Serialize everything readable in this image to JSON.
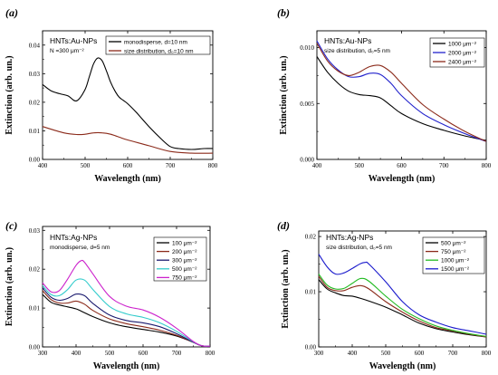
{
  "chart_data": [
    {
      "panel_label": "(a)",
      "type": "line",
      "annotation": [
        "HNTs:Au-NPs",
        "N =300 μm⁻²"
      ],
      "xlabel": "Wavelength (nm)",
      "ylabel": "Extinction (arb. un.)",
      "xlim": [
        400,
        800
      ],
      "ylim": [
        0,
        0.045
      ],
      "xticks": [
        400,
        500,
        600,
        700,
        800
      ],
      "xtick_labels": [
        "400",
        "500",
        "600",
        "700",
        "800"
      ],
      "yticks": [
        0,
        0.01,
        0.02,
        0.03,
        0.04
      ],
      "ytick_labels": [
        "0.00",
        "0.01",
        "0.02",
        "0.03",
        "0.04"
      ],
      "legend_position": "top-right",
      "series": [
        {
          "name": "monodisperse, d=10 nm",
          "color": "#000000",
          "x": [
            400,
            420,
            440,
            460,
            480,
            500,
            510,
            520,
            530,
            540,
            550,
            560,
            570,
            580,
            600,
            620,
            650,
            680,
            700,
            720,
            750,
            780,
            800
          ],
          "y": [
            0.0262,
            0.024,
            0.023,
            0.0222,
            0.0205,
            0.0245,
            0.029,
            0.0335,
            0.0355,
            0.0345,
            0.031,
            0.027,
            0.024,
            0.0218,
            0.0195,
            0.0165,
            0.0115,
            0.007,
            0.0045,
            0.0038,
            0.0035,
            0.0038,
            0.0038
          ]
        },
        {
          "name": "size distribution, d₀=10 nm",
          "color": "#8b2a1a",
          "x": [
            400,
            450,
            480,
            500,
            520,
            540,
            560,
            580,
            600,
            650,
            700,
            750,
            800
          ],
          "y": [
            0.0115,
            0.0093,
            0.0087,
            0.0088,
            0.0093,
            0.0093,
            0.0088,
            0.0078,
            0.0068,
            0.0048,
            0.0028,
            0.0022,
            0.0022
          ]
        }
      ]
    },
    {
      "panel_label": "(b)",
      "type": "line",
      "annotation": [
        "HNTs:Au-NPs",
        "size distribution, d₀=5 nm"
      ],
      "xlabel": "Wavelength (nm)",
      "ylabel": "Extinction (arb. un.)",
      "xlim": [
        400,
        800
      ],
      "ylim": [
        0,
        0.0115
      ],
      "xticks": [
        400,
        500,
        600,
        700,
        800
      ],
      "xtick_labels": [
        "400",
        "500",
        "600",
        "700",
        "800"
      ],
      "yticks": [
        0,
        0.005,
        0.01
      ],
      "ytick_labels": [
        "0.000",
        "0.005",
        "0.010"
      ],
      "legend_position": "top-right",
      "series": [
        {
          "name": "1000 μm⁻²",
          "color": "#000000",
          "x": [
            400,
            425,
            450,
            475,
            500,
            525,
            550,
            575,
            600,
            650,
            700,
            750,
            800
          ],
          "y": [
            0.0092,
            0.0078,
            0.0068,
            0.0061,
            0.0058,
            0.0057,
            0.0055,
            0.0048,
            0.0041,
            0.0032,
            0.0026,
            0.0021,
            0.0017
          ]
        },
        {
          "name": "2000 μm⁻²",
          "color": "#2222cc",
          "x": [
            400,
            425,
            450,
            475,
            500,
            525,
            550,
            575,
            600,
            650,
            700,
            750,
            800
          ],
          "y": [
            0.0106,
            0.009,
            0.008,
            0.0074,
            0.0074,
            0.0077,
            0.0076,
            0.0068,
            0.0057,
            0.0041,
            0.0031,
            0.0023,
            0.0016
          ]
        },
        {
          "name": "2400 μm⁻²",
          "color": "#8b2a1a",
          "x": [
            400,
            425,
            450,
            475,
            500,
            525,
            550,
            575,
            600,
            650,
            700,
            750,
            800
          ],
          "y": [
            0.0104,
            0.0088,
            0.0079,
            0.0075,
            0.0078,
            0.0083,
            0.0084,
            0.0078,
            0.0068,
            0.0049,
            0.0036,
            0.0025,
            0.0016
          ]
        }
      ]
    },
    {
      "panel_label": "(c)",
      "type": "line",
      "annotation": [
        "HNTs:Ag-NPs",
        "monodisperse, d=5 nm"
      ],
      "xlabel": "Wavelength (nm)",
      "ylabel": "Extinction (arb. un.)",
      "xlim": [
        300,
        800
      ],
      "ylim": [
        0,
        0.031
      ],
      "xticks": [
        300,
        400,
        500,
        600,
        700,
        800
      ],
      "xtick_labels": [
        "300",
        "400",
        "500",
        "600",
        "700",
        "800"
      ],
      "yticks": [
        0,
        0.01,
        0.02,
        0.03
      ],
      "ytick_labels": [
        "0.00",
        "0.01",
        "0.02",
        "0.03"
      ],
      "legend_position": "top-right",
      "series": [
        {
          "name": "100 μm⁻²",
          "color": "#000000",
          "x": [
            300,
            325,
            350,
            375,
            400,
            425,
            450,
            500,
            550,
            600,
            650,
            700,
            750,
            775,
            800
          ],
          "y": [
            0.0135,
            0.0115,
            0.0108,
            0.0103,
            0.0098,
            0.0088,
            0.0078,
            0.0062,
            0.0052,
            0.0045,
            0.0038,
            0.0028,
            0.0012,
            0.0003,
            0.0002
          ]
        },
        {
          "name": "200 μm⁻²",
          "color": "#8b2a1a",
          "x": [
            300,
            325,
            350,
            375,
            400,
            425,
            450,
            500,
            550,
            600,
            650,
            700,
            750,
            775,
            800
          ],
          "y": [
            0.0145,
            0.0122,
            0.0113,
            0.0113,
            0.0118,
            0.011,
            0.0094,
            0.0072,
            0.006,
            0.0052,
            0.0043,
            0.003,
            0.0012,
            0.0003,
            0.0002
          ]
        },
        {
          "name": "300 μm⁻²",
          "color": "#1a1a6e",
          "x": [
            300,
            325,
            350,
            375,
            400,
            425,
            450,
            500,
            550,
            600,
            650,
            700,
            750,
            775,
            800
          ],
          "y": [
            0.0152,
            0.0128,
            0.012,
            0.0125,
            0.0136,
            0.0132,
            0.0112,
            0.0082,
            0.0068,
            0.0062,
            0.0052,
            0.0034,
            0.0012,
            0.0003,
            0.0002
          ]
        },
        {
          "name": "500 μm⁻²",
          "color": "#33cccc",
          "x": [
            300,
            325,
            350,
            375,
            400,
            425,
            450,
            500,
            550,
            600,
            650,
            700,
            750,
            775,
            800
          ],
          "y": [
            0.0158,
            0.0135,
            0.0132,
            0.0148,
            0.0172,
            0.0172,
            0.0148,
            0.0104,
            0.0085,
            0.0076,
            0.0062,
            0.004,
            0.0013,
            0.0003,
            0.0002
          ]
        },
        {
          "name": "750 μm⁻²",
          "color": "#cc22cc",
          "x": [
            300,
            325,
            350,
            375,
            400,
            415,
            425,
            450,
            500,
            550,
            600,
            650,
            700,
            750,
            775,
            800
          ],
          "y": [
            0.0165,
            0.0142,
            0.0145,
            0.0175,
            0.021,
            0.0222,
            0.0218,
            0.0188,
            0.013,
            0.0105,
            0.0095,
            0.0076,
            0.0048,
            0.0014,
            0.0003,
            0.0002
          ]
        }
      ]
    },
    {
      "panel_label": "(d)",
      "type": "line",
      "annotation": [
        "HNTs:Ag-NPs",
        "size distribution, d₀=5 nm"
      ],
      "xlabel": "Wavelength (nm)",
      "ylabel": "Extinction (arb. un.)",
      "xlim": [
        300,
        800
      ],
      "ylim": [
        0,
        0.021
      ],
      "xticks": [
        300,
        400,
        500,
        600,
        700,
        800
      ],
      "xtick_labels": [
        "300",
        "400",
        "500",
        "600",
        "700",
        "800"
      ],
      "yticks": [
        0,
        0.01,
        0.02
      ],
      "ytick_labels": [
        "0.00",
        "0.01",
        "0.02"
      ],
      "legend_position": "top-right",
      "series": [
        {
          "name": "500 μm⁻²",
          "color": "#000000",
          "x": [
            300,
            325,
            350,
            375,
            400,
            425,
            450,
            500,
            550,
            600,
            650,
            700,
            750,
            800
          ],
          "y": [
            0.0122,
            0.0105,
            0.0098,
            0.0093,
            0.0092,
            0.0088,
            0.0083,
            0.0072,
            0.0058,
            0.0043,
            0.0033,
            0.0027,
            0.0022,
            0.0018
          ]
        },
        {
          "name": "750 μm⁻²",
          "color": "#8b2a1a",
          "x": [
            300,
            325,
            350,
            375,
            400,
            425,
            450,
            500,
            550,
            600,
            650,
            700,
            750,
            800
          ],
          "y": [
            0.0128,
            0.0108,
            0.0102,
            0.0102,
            0.0108,
            0.0111,
            0.0105,
            0.0082,
            0.0063,
            0.0047,
            0.0035,
            0.0029,
            0.0023,
            0.0018
          ]
        },
        {
          "name": "1000 μm⁻²",
          "color": "#22bb22",
          "x": [
            300,
            325,
            350,
            375,
            400,
            425,
            450,
            500,
            550,
            600,
            650,
            700,
            750,
            800
          ],
          "y": [
            0.0132,
            0.0112,
            0.0105,
            0.0106,
            0.0115,
            0.0124,
            0.0119,
            0.0092,
            0.0068,
            0.0051,
            0.0038,
            0.003,
            0.0024,
            0.0019
          ]
        },
        {
          "name": "1500 μm⁻²",
          "color": "#1a1acc",
          "x": [
            300,
            325,
            350,
            375,
            400,
            425,
            440,
            450,
            500,
            550,
            600,
            650,
            700,
            750,
            800
          ],
          "y": [
            0.0168,
            0.0145,
            0.0132,
            0.0134,
            0.0142,
            0.0151,
            0.0153,
            0.015,
            0.0118,
            0.0082,
            0.0058,
            0.0045,
            0.0035,
            0.0029,
            0.0023
          ]
        }
      ]
    }
  ]
}
